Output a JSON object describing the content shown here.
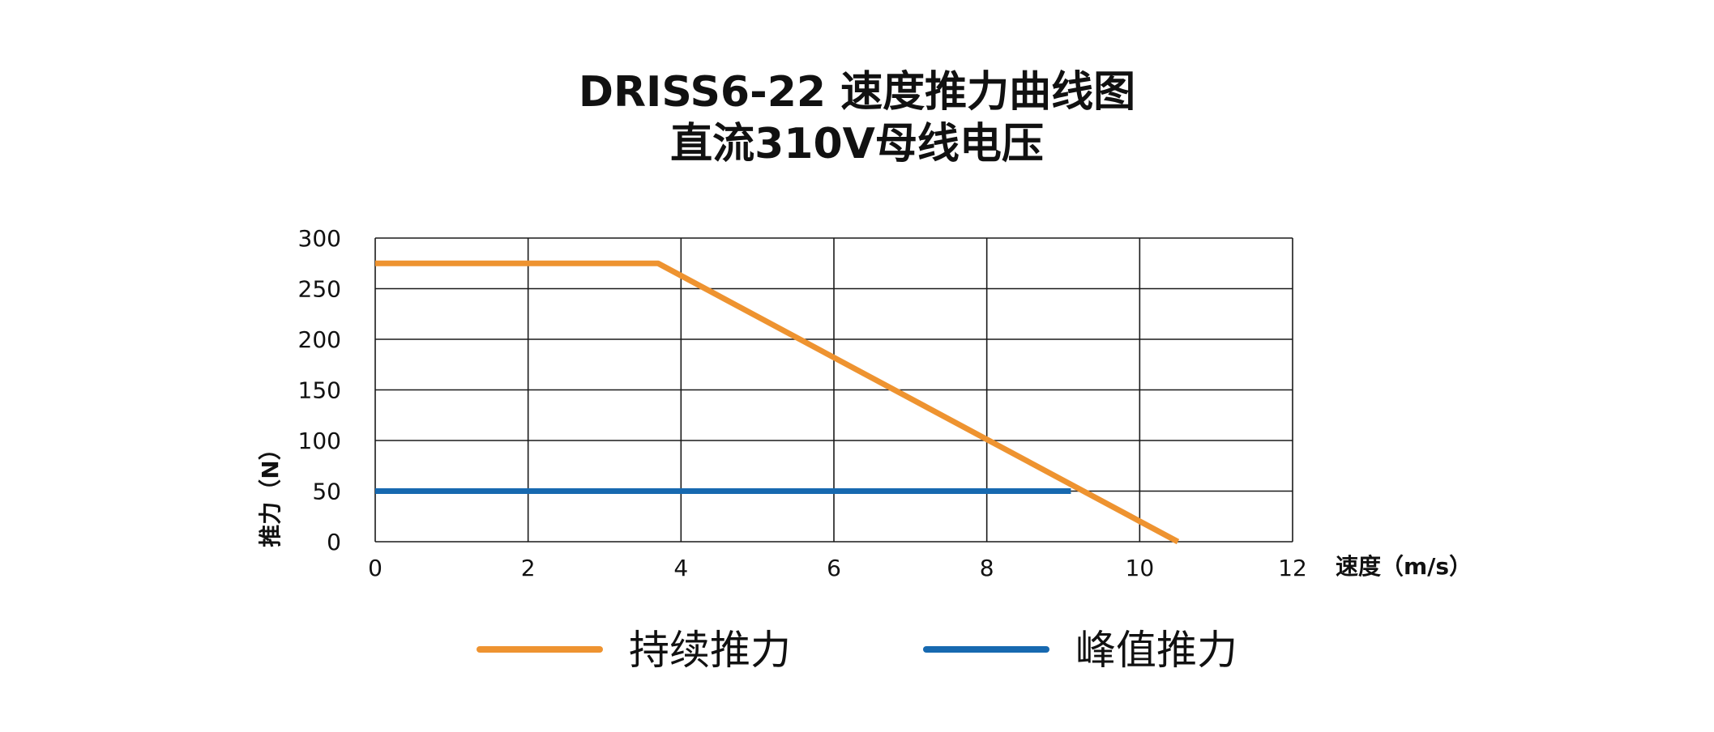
{
  "chart_data": {
    "type": "line",
    "title": "DRISS6-22 速度推力曲线图",
    "subtitle": "直流310V母线电压",
    "xlabel": "速度（m/s）",
    "ylabel": "推力（N）",
    "xlim": [
      0,
      12
    ],
    "ylim": [
      0,
      300
    ],
    "xticks": [
      0,
      2,
      4,
      6,
      8,
      10,
      12
    ],
    "yticks": [
      0,
      50,
      100,
      150,
      200,
      250,
      300
    ],
    "grid": true,
    "legend_position": "bottom",
    "series": [
      {
        "name": "持续推力",
        "color": "#EE9330",
        "points": [
          [
            0,
            275
          ],
          [
            3.7,
            275
          ],
          [
            10.5,
            0
          ]
        ]
      },
      {
        "name": "峰值推力",
        "color": "#1769B0",
        "points": [
          [
            0,
            50
          ],
          [
            9.1,
            50
          ]
        ]
      }
    ]
  }
}
